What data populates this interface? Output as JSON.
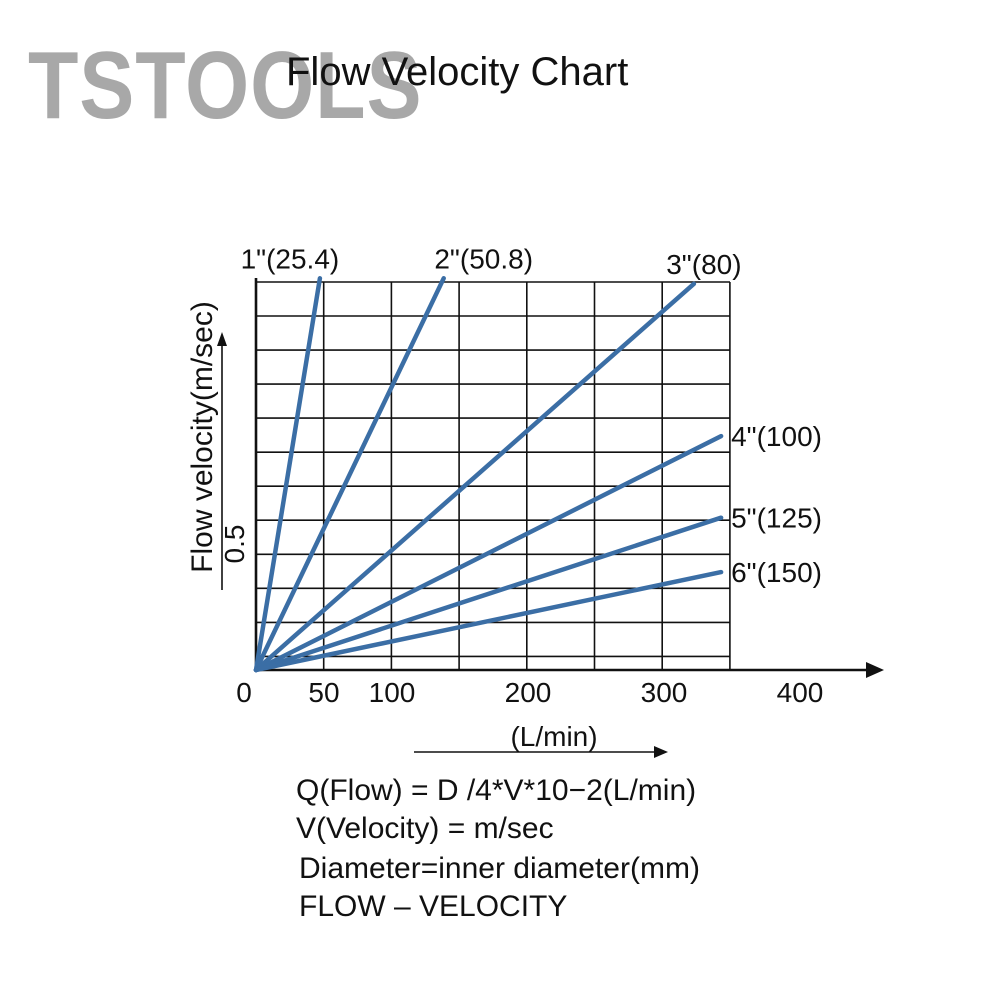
{
  "watermark": "TSTOOLS",
  "chart_data": {
    "type": "line",
    "title": "Flow Velocity Chart",
    "xlabel": "(L/min)",
    "ylabel": "Flow velocity(m/sec)",
    "x_ticks": [
      0,
      50,
      100,
      200,
      300,
      400
    ],
    "y_ticks": [
      {
        "value": 0.5,
        "label": "0.5"
      }
    ],
    "xlim": [
      0,
      440
    ],
    "ylim": [
      0,
      1.47
    ],
    "grid": true,
    "series": [
      {
        "name": "1\"(25.4)",
        "x": [
          0,
          47
        ],
        "y": [
          0,
          1.44
        ],
        "color": "#3b6ea5"
      },
      {
        "name": "2\"(50.8)",
        "x": [
          0,
          138
        ],
        "y": [
          0,
          1.44
        ],
        "color": "#3b6ea5"
      },
      {
        "name": "3\"(80)",
        "x": [
          0,
          322
        ],
        "y": [
          0,
          1.42
        ],
        "color": "#3b6ea5"
      },
      {
        "name": "4\"(100)",
        "x": [
          0,
          342
        ],
        "y": [
          0,
          0.86
        ],
        "color": "#3b6ea5"
      },
      {
        "name": "5\"(125)",
        "x": [
          0,
          342
        ],
        "y": [
          0,
          0.56
        ],
        "color": "#3b6ea5"
      },
      {
        "name": "6\"(150)",
        "x": [
          0,
          342
        ],
        "y": [
          0,
          0.36
        ],
        "color": "#3b6ea5"
      }
    ]
  },
  "notes": [
    "Q(Flow) = D /4*V*10−2(L/min)",
    "V(Velocity) = m/sec",
    "Diameter=inner diameter(mm)",
    "FLOW – VELOCITY"
  ]
}
